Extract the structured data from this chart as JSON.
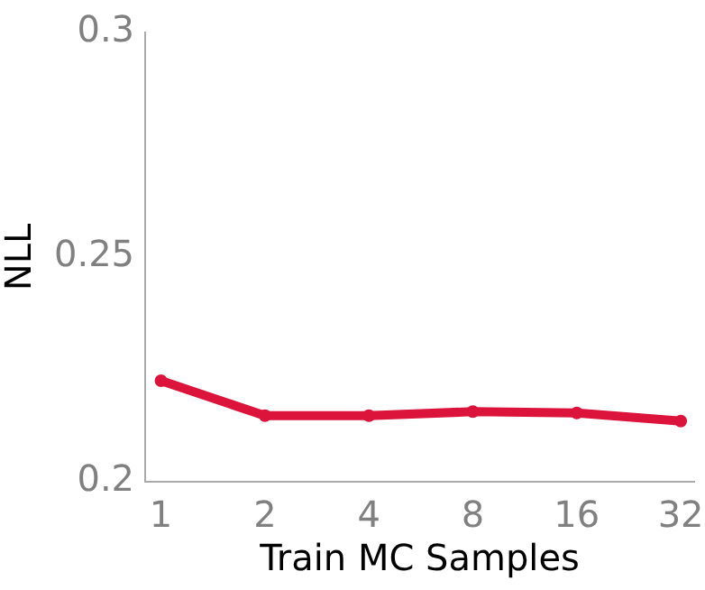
{
  "chart_data": {
    "type": "line",
    "xlabel": "Train MC Samples",
    "ylabel": "NLL",
    "x": [
      1,
      2,
      4,
      8,
      16,
      32
    ],
    "series": [
      {
        "color": "#dc143c",
        "values": [
          0.2225,
          0.2147,
          0.2147,
          0.2156,
          0.2153,
          0.2135
        ]
      }
    ],
    "xlim": [
      0.9,
      35
    ],
    "xticks": [
      1,
      2,
      4,
      8,
      16,
      32
    ],
    "ylim": [
      0.2,
      0.3
    ],
    "yticks": [
      0.2,
      0.25,
      0.3
    ],
    "log": "x",
    "grid": false,
    "legend": false,
    "marker": "circle",
    "line_style": "solid"
  }
}
